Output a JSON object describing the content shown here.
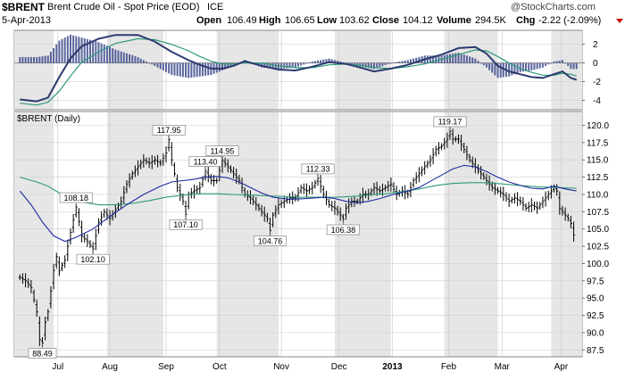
{
  "header": {
    "symbol": "$BRENT",
    "name": "Brent Crude Oil - Spot Price (EOD)",
    "exchange": "ICE",
    "date": "5-Apr-2013",
    "quote": {
      "open_label": "Open",
      "open": "106.49",
      "high_label": "High",
      "high": "106.65",
      "low_label": "Low",
      "low": "103.62",
      "close_label": "Close",
      "close": "104.12",
      "volume_label": "Volume",
      "volume": "294.5K",
      "chg_label": "Chg",
      "chg": "-2.22 (-2.09%)"
    },
    "watermark": "@StockCharts.com"
  },
  "colors": {
    "background": "#ffffff",
    "band": "#e6e6e6",
    "price_bars": "#000000",
    "ma_long": "#2d9a7a",
    "ma_short": "#1e2aa0",
    "macd_line": "#2b3a6e",
    "signal_line": "#2d9a7a",
    "histogram": "#3c4a8c",
    "chg_arrow": "#cc0000"
  },
  "chart_data": [
    {
      "type": "line",
      "panel": "MACD",
      "title": "",
      "y_ticks": [
        2,
        0,
        -2,
        -4
      ],
      "ylim": [
        -5,
        3.5
      ],
      "macd": [
        [
          0,
          -3.9
        ],
        [
          6,
          -4.1
        ],
        [
          10,
          -3.7
        ],
        [
          14,
          -1.5
        ],
        [
          18,
          0.5
        ],
        [
          22,
          1.8
        ],
        [
          28,
          2.6
        ],
        [
          34,
          3.0
        ],
        [
          42,
          3.0
        ],
        [
          48,
          2.3
        ],
        [
          54,
          1.2
        ],
        [
          60,
          0.3
        ],
        [
          64,
          -0.2
        ],
        [
          68,
          -0.6
        ],
        [
          72,
          -0.6
        ],
        [
          76,
          -0.3
        ],
        [
          80,
          0.2
        ],
        [
          86,
          -0.3
        ],
        [
          92,
          -0.7
        ],
        [
          98,
          -0.8
        ],
        [
          104,
          -0.4
        ],
        [
          110,
          0.1
        ],
        [
          116,
          -0.1
        ],
        [
          120,
          -0.4
        ],
        [
          126,
          -0.9
        ],
        [
          132,
          -0.6
        ],
        [
          138,
          -0.2
        ],
        [
          144,
          0.4
        ],
        [
          150,
          0.9
        ],
        [
          156,
          1.6
        ],
        [
          162,
          1.7
        ],
        [
          166,
          1.0
        ],
        [
          170,
          -0.3
        ],
        [
          174,
          -0.9
        ],
        [
          178,
          -1.2
        ],
        [
          182,
          -1.5
        ],
        [
          186,
          -1.6
        ],
        [
          190,
          -1.2
        ],
        [
          193,
          -0.9
        ],
        [
          196,
          -1.6
        ],
        [
          198,
          -1.8
        ]
      ],
      "signal": [
        [
          0,
          -4.3
        ],
        [
          6,
          -4.5
        ],
        [
          10,
          -4.2
        ],
        [
          14,
          -3.0
        ],
        [
          18,
          -1.4
        ],
        [
          22,
          0.1
        ],
        [
          28,
          1.2
        ],
        [
          34,
          2.1
        ],
        [
          42,
          2.6
        ],
        [
          48,
          2.5
        ],
        [
          54,
          2.0
        ],
        [
          60,
          1.3
        ],
        [
          64,
          0.7
        ],
        [
          68,
          0.2
        ],
        [
          72,
          -0.1
        ],
        [
          76,
          -0.1
        ],
        [
          80,
          0.0
        ],
        [
          86,
          0.0
        ],
        [
          92,
          -0.3
        ],
        [
          98,
          -0.5
        ],
        [
          104,
          -0.5
        ],
        [
          110,
          -0.2
        ],
        [
          116,
          -0.1
        ],
        [
          120,
          -0.2
        ],
        [
          126,
          -0.5
        ],
        [
          132,
          -0.6
        ],
        [
          138,
          -0.4
        ],
        [
          144,
          -0.1
        ],
        [
          150,
          0.4
        ],
        [
          156,
          0.9
        ],
        [
          162,
          1.4
        ],
        [
          166,
          1.3
        ],
        [
          170,
          0.7
        ],
        [
          174,
          0.0
        ],
        [
          178,
          -0.6
        ],
        [
          182,
          -1.0
        ],
        [
          186,
          -1.3
        ],
        [
          190,
          -1.3
        ],
        [
          193,
          -1.1
        ],
        [
          196,
          -1.2
        ],
        [
          198,
          -1.4
        ]
      ]
    },
    {
      "type": "line",
      "panel": "Price",
      "title": "$BRENT (Daily)",
      "xlabel": "",
      "ylabel": "",
      "ylim": [
        86.5,
        122
      ],
      "y_ticks": [
        87.5,
        90.0,
        92.5,
        95.0,
        97.5,
        100.0,
        102.5,
        105.0,
        107.5,
        110.0,
        112.5,
        115.0,
        117.5,
        120.0
      ],
      "x_ticks": [
        {
          "label": "Jul",
          "t": 13.5,
          "bold": false
        },
        {
          "label": "Aug",
          "t": 32,
          "bold": false
        },
        {
          "label": "Sep",
          "t": 52,
          "bold": false
        },
        {
          "label": "Oct",
          "t": 71,
          "bold": false
        },
        {
          "label": "Nov",
          "t": 93,
          "bold": false
        },
        {
          "label": "Dec",
          "t": 113.5,
          "bold": false
        },
        {
          "label": "2013",
          "t": 132.5,
          "bold": true
        },
        {
          "label": "Feb",
          "t": 152.5,
          "bold": false
        },
        {
          "label": "Mar",
          "t": 171.5,
          "bold": false
        },
        {
          "label": "Apr",
          "t": 192.5,
          "bold": false
        }
      ],
      "shaded_bands": [
        [
          -2,
          12
        ],
        [
          31,
          51
        ],
        [
          70,
          92
        ],
        [
          112,
          132
        ],
        [
          151,
          170
        ],
        [
          189,
          200
        ]
      ],
      "close": [
        [
          0,
          98
        ],
        [
          2,
          97.5
        ],
        [
          4,
          96.5
        ],
        [
          6,
          93
        ],
        [
          7,
          89
        ],
        [
          8,
          88.49
        ],
        [
          9,
          91.5
        ],
        [
          10,
          93
        ],
        [
          11,
          96
        ],
        [
          12,
          99
        ],
        [
          13,
          101
        ],
        [
          14,
          99
        ],
        [
          16,
          100.5
        ],
        [
          18,
          104.5
        ],
        [
          20,
          108.18
        ],
        [
          22,
          104
        ],
        [
          24,
          103.2
        ],
        [
          26,
          102.1
        ],
        [
          28,
          106
        ],
        [
          30,
          107.5
        ],
        [
          32,
          106.5
        ],
        [
          34,
          107.8
        ],
        [
          36,
          109
        ],
        [
          38,
          111.5
        ],
        [
          40,
          113
        ],
        [
          42,
          114
        ],
        [
          44,
          115
        ],
        [
          46,
          114.5
        ],
        [
          48,
          115
        ],
        [
          50,
          114.5
        ],
        [
          52,
          116
        ],
        [
          53,
          117.95
        ],
        [
          54,
          115
        ],
        [
          56,
          111
        ],
        [
          58,
          109
        ],
        [
          59,
          107.1
        ],
        [
          60,
          110
        ],
        [
          62,
          110.5
        ],
        [
          64,
          111
        ],
        [
          66,
          113.4
        ],
        [
          68,
          112
        ],
        [
          70,
          112
        ],
        [
          72,
          114.95
        ],
        [
          74,
          114
        ],
        [
          76,
          113
        ],
        [
          78,
          112
        ],
        [
          80,
          110
        ],
        [
          82,
          109.5
        ],
        [
          84,
          108.5
        ],
        [
          86,
          107.5
        ],
        [
          88,
          106.5
        ],
        [
          89,
          104.76
        ],
        [
          90,
          107
        ],
        [
          92,
          108.5
        ],
        [
          94,
          109
        ],
        [
          96,
          109.5
        ],
        [
          98,
          109.5
        ],
        [
          100,
          111
        ],
        [
          102,
          110.5
        ],
        [
          104,
          111
        ],
        [
          106,
          112.33
        ],
        [
          108,
          110
        ],
        [
          110,
          108.5
        ],
        [
          112,
          108
        ],
        [
          114,
          107
        ],
        [
          115,
          106.38
        ],
        [
          116,
          108
        ],
        [
          118,
          109
        ],
        [
          120,
          109
        ],
        [
          122,
          110
        ],
        [
          124,
          110
        ],
        [
          126,
          111
        ],
        [
          128,
          110.5
        ],
        [
          130,
          111
        ],
        [
          132,
          111.5
        ],
        [
          134,
          110
        ],
        [
          136,
          110.5
        ],
        [
          138,
          110
        ],
        [
          140,
          112
        ],
        [
          142,
          113
        ],
        [
          144,
          114
        ],
        [
          146,
          115
        ],
        [
          148,
          116.5
        ],
        [
          150,
          117
        ],
        [
          152,
          118
        ],
        [
          153,
          119.17
        ],
        [
          154,
          118
        ],
        [
          156,
          118
        ],
        [
          158,
          116.5
        ],
        [
          160,
          115
        ],
        [
          162,
          114
        ],
        [
          164,
          113
        ],
        [
          166,
          112
        ],
        [
          168,
          111
        ],
        [
          170,
          110.5
        ],
        [
          172,
          110
        ],
        [
          174,
          109
        ],
        [
          176,
          109.5
        ],
        [
          178,
          109
        ],
        [
          180,
          108
        ],
        [
          182,
          108.5
        ],
        [
          184,
          108
        ],
        [
          186,
          109
        ],
        [
          188,
          110
        ],
        [
          190,
          111
        ],
        [
          191,
          110.5
        ],
        [
          192,
          108
        ],
        [
          194,
          107
        ],
        [
          195,
          106.5
        ],
        [
          196,
          105.8
        ],
        [
          197,
          104.12
        ]
      ],
      "ma_50": [
        [
          0,
          112.5
        ],
        [
          6,
          111.8
        ],
        [
          10,
          111.2
        ],
        [
          14,
          110.2
        ],
        [
          18,
          109.4
        ],
        [
          22,
          108.9
        ],
        [
          28,
          108.5
        ],
        [
          34,
          108.5
        ],
        [
          40,
          108.7
        ],
        [
          46,
          109.1
        ],
        [
          52,
          109.6
        ],
        [
          58,
          109.9
        ],
        [
          64,
          110.1
        ],
        [
          70,
          110.1
        ],
        [
          76,
          110
        ],
        [
          82,
          109.9
        ],
        [
          88,
          109.8
        ],
        [
          94,
          109.7
        ],
        [
          100,
          109.6
        ],
        [
          106,
          109.6
        ],
        [
          112,
          109.6
        ],
        [
          118,
          109.7
        ],
        [
          124,
          109.9
        ],
        [
          130,
          110.1
        ],
        [
          136,
          110.4
        ],
        [
          142,
          110.8
        ],
        [
          148,
          111.3
        ],
        [
          154,
          111.6
        ],
        [
          160,
          111.7
        ],
        [
          166,
          111.7
        ],
        [
          172,
          111.5
        ],
        [
          178,
          111.3
        ],
        [
          184,
          111.1
        ],
        [
          190,
          111
        ],
        [
          198,
          110.9
        ]
      ],
      "ma_20": [
        [
          0,
          110.5
        ],
        [
          4,
          108.5
        ],
        [
          8,
          106
        ],
        [
          12,
          104
        ],
        [
          16,
          103.2
        ],
        [
          20,
          103.8
        ],
        [
          26,
          105
        ],
        [
          32,
          106.8
        ],
        [
          38,
          108.5
        ],
        [
          44,
          110
        ],
        [
          50,
          111.2
        ],
        [
          54,
          111.8
        ],
        [
          58,
          112
        ],
        [
          62,
          112.2
        ],
        [
          66,
          112.5
        ],
        [
          70,
          112.6
        ],
        [
          74,
          112.4
        ],
        [
          78,
          111.8
        ],
        [
          82,
          111
        ],
        [
          86,
          110.2
        ],
        [
          90,
          109.6
        ],
        [
          96,
          109.3
        ],
        [
          102,
          109.4
        ],
        [
          108,
          109.6
        ],
        [
          112,
          109.4
        ],
        [
          116,
          109
        ],
        [
          120,
          108.8
        ],
        [
          124,
          109
        ],
        [
          128,
          109.4
        ],
        [
          132,
          109.9
        ],
        [
          138,
          110.5
        ],
        [
          142,
          111
        ],
        [
          146,
          111.9
        ],
        [
          150,
          112.8
        ],
        [
          154,
          113.7
        ],
        [
          158,
          114.2
        ],
        [
          162,
          114
        ],
        [
          166,
          113.3
        ],
        [
          170,
          112.5
        ],
        [
          174,
          111.8
        ],
        [
          178,
          111.3
        ],
        [
          182,
          110.9
        ],
        [
          186,
          110.8
        ],
        [
          190,
          111.2
        ],
        [
          194,
          110.8
        ],
        [
          198,
          110.5
        ]
      ],
      "annotations": [
        {
          "label": "88.49",
          "t": 8,
          "value": 88.49,
          "pos": "below"
        },
        {
          "label": "108.18",
          "t": 20,
          "value": 108.18,
          "pos": "above"
        },
        {
          "label": "102.10",
          "t": 26,
          "value": 102.1,
          "pos": "below"
        },
        {
          "label": "117.95",
          "t": 53,
          "value": 117.95,
          "pos": "above"
        },
        {
          "label": "107.10",
          "t": 59,
          "value": 107.1,
          "pos": "below"
        },
        {
          "label": "113.40",
          "t": 66,
          "value": 113.4,
          "pos": "above"
        },
        {
          "label": "114.95",
          "t": 72,
          "value": 114.95,
          "pos": "above"
        },
        {
          "label": "104.76",
          "t": 89,
          "value": 104.76,
          "pos": "below"
        },
        {
          "label": "112.33",
          "t": 106,
          "value": 112.33,
          "pos": "above"
        },
        {
          "label": "106.38",
          "t": 115,
          "value": 106.38,
          "pos": "below"
        },
        {
          "label": "119.17",
          "t": 153,
          "value": 119.17,
          "pos": "above"
        }
      ]
    }
  ]
}
